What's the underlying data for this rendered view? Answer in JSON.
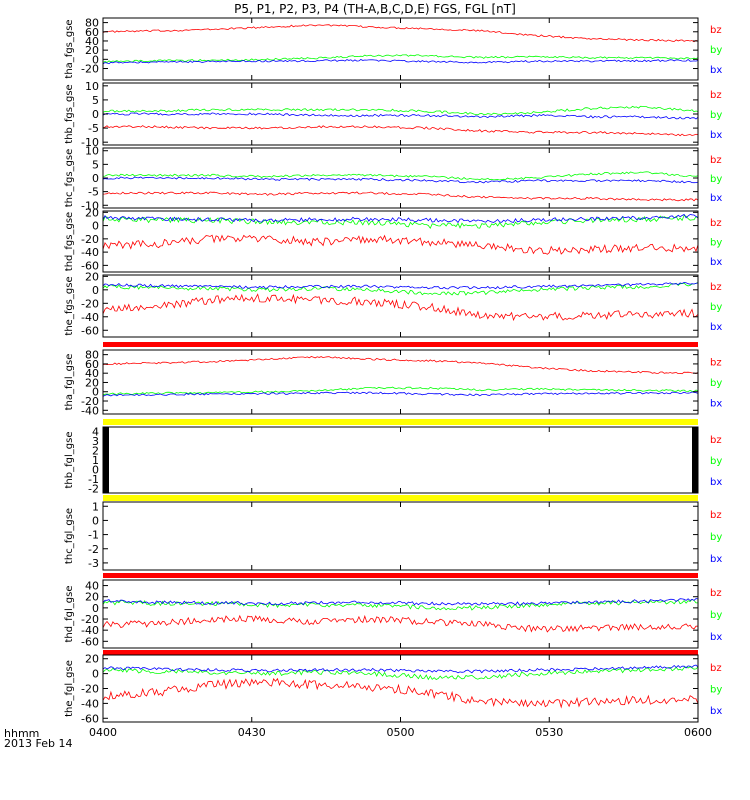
{
  "title": "P5, P1, P2, P3, P4 (TH-A,B,C,D,E) FGS, FGL [nT]",
  "footer": {
    "axis_label": "hhmm",
    "date_label": "2013 Feb 14"
  },
  "x_tick_labels": [
    "0400",
    "0430",
    "0500",
    "0530",
    "0600"
  ],
  "series_colors": {
    "bz": "#ff0000",
    "by": "#00ff00",
    "bx": "#0000ff"
  },
  "bar_colors": {
    "red": "#ff0000",
    "yellow": "#ffff00",
    "black": "#000000"
  },
  "chart_data": {
    "type": "line",
    "x_range_hhmm": [
      "0400",
      "0600"
    ],
    "panels": [
      {
        "ylabel": "tha_fgs_gse",
        "ylim": [
          -45,
          90
        ],
        "yticks": [
          -20,
          0,
          20,
          40,
          60,
          80
        ],
        "ytick_labels": [
          "-20",
          "0",
          "20",
          "40",
          "60",
          "80"
        ],
        "series": [
          {
            "name": "bz",
            "level": [
              60,
              62,
              65,
              70,
              75,
              70,
              67,
              62,
              52,
              45,
              42,
              40
            ],
            "noise": 2
          },
          {
            "name": "by",
            "level": [
              -5,
              -3,
              -2,
              0,
              3,
              8,
              8,
              4,
              6,
              4,
              3,
              2
            ],
            "noise": 2
          },
          {
            "name": "bx",
            "level": [
              -8,
              -6,
              -5,
              -4,
              -3,
              -2,
              -5,
              -7,
              -4,
              -4,
              -3,
              -2
            ],
            "noise": 2
          }
        ]
      },
      {
        "ylabel": "thb_fgs_gse",
        "ylim": [
          -11,
          11
        ],
        "yticks": [
          -10,
          -5,
          0,
          5,
          10
        ],
        "ytick_labels": [
          "-10",
          "-5",
          "0",
          "5",
          "10"
        ],
        "series": [
          {
            "name": "bz",
            "level": [
              -4.5,
              -4.5,
              -5,
              -5,
              -4.5,
              -4.5,
              -5,
              -6,
              -6.5,
              -6.5,
              -7,
              -7.5
            ],
            "noise": 0.4
          },
          {
            "name": "by",
            "level": [
              1,
              1,
              1.5,
              1.5,
              1.5,
              1.5,
              1,
              0,
              0.5,
              2,
              2.5,
              1
            ],
            "noise": 0.4
          },
          {
            "name": "bx",
            "level": [
              0,
              0,
              0,
              0,
              -0.5,
              -0.5,
              -0.5,
              -1,
              -0.5,
              -1,
              -1,
              -1.5
            ],
            "noise": 0.4
          }
        ]
      },
      {
        "ylabel": "thc_fgs_gse",
        "ylim": [
          -11,
          11
        ],
        "yticks": [
          -10,
          -5,
          0,
          5,
          10
        ],
        "ytick_labels": [
          "-10",
          "-5",
          "0",
          "5",
          "10"
        ],
        "series": [
          {
            "name": "bz",
            "level": [
              -5.5,
              -5.5,
              -5.5,
              -6,
              -5.5,
              -5.5,
              -6,
              -7,
              -7.5,
              -7.5,
              -8,
              -8
            ],
            "noise": 0.4
          },
          {
            "name": "by",
            "level": [
              1,
              1,
              1,
              0.5,
              1,
              1,
              0.5,
              -0.5,
              0,
              1.5,
              2,
              0.5
            ],
            "noise": 0.4
          },
          {
            "name": "bx",
            "level": [
              0,
              0,
              0,
              -0.5,
              -0.5,
              -0.5,
              -1,
              -1.5,
              -1,
              -1,
              -1,
              -1.5
            ],
            "noise": 0.4
          }
        ]
      },
      {
        "ylabel": "thd_fgs_gse",
        "ylim": [
          -70,
          22
        ],
        "yticks": [
          -60,
          -40,
          -20,
          0,
          20
        ],
        "ytick_labels": [
          "-60",
          "-40",
          "-20",
          "0",
          "20"
        ],
        "series": [
          {
            "name": "bz",
            "level": [
              -30,
              -28,
              -20,
              -20,
              -25,
              -20,
              -25,
              -30,
              -38,
              -36,
              -34,
              -33
            ],
            "noise": 6
          },
          {
            "name": "by",
            "level": [
              10,
              8,
              8,
              5,
              5,
              5,
              0,
              0,
              5,
              8,
              10,
              12
            ],
            "noise": 4
          },
          {
            "name": "bx",
            "level": [
              12,
              10,
              9,
              8,
              9,
              10,
              8,
              7,
              8,
              10,
              12,
              15
            ],
            "noise": 3
          }
        ]
      },
      {
        "ylabel": "the_fgs_gse",
        "ylim": [
          -70,
          22
        ],
        "yticks": [
          -60,
          -40,
          -20,
          0,
          20
        ],
        "ytick_labels": [
          "-60",
          "-40",
          "-20",
          "0",
          "20"
        ],
        "series": [
          {
            "name": "bz",
            "level": [
              -30,
              -25,
              -15,
              -12,
              -15,
              -18,
              -25,
              -38,
              -40,
              -38,
              -36,
              -35
            ],
            "noise": 6
          },
          {
            "name": "by",
            "level": [
              5,
              3,
              2,
              0,
              2,
              0,
              -5,
              -5,
              0,
              3,
              5,
              8
            ],
            "noise": 3
          },
          {
            "name": "bx",
            "level": [
              8,
              6,
              5,
              4,
              5,
              5,
              3,
              3,
              5,
              6,
              8,
              10
            ],
            "noise": 2
          }
        ]
      },
      {
        "ylabel": "tha_fgl_gse",
        "ylim": [
          -48,
          90
        ],
        "yticks": [
          -40,
          -20,
          0,
          20,
          40,
          60,
          80
        ],
        "ytick_labels": [
          "-40",
          "-20",
          "0",
          "20",
          "40",
          "60",
          "80"
        ],
        "series": [
          {
            "name": "bz",
            "level": [
              60,
              62,
              65,
              70,
              75,
              70,
              67,
              62,
              52,
              45,
              42,
              40
            ],
            "noise": 2
          },
          {
            "name": "by",
            "level": [
              -5,
              -3,
              -2,
              0,
              3,
              8,
              8,
              4,
              6,
              4,
              3,
              2
            ],
            "noise": 2
          },
          {
            "name": "bx",
            "level": [
              -8,
              -6,
              -5,
              -4,
              -3,
              -2,
              -5,
              -7,
              -4,
              -4,
              -3,
              -2
            ],
            "noise": 2
          }
        ]
      },
      {
        "ylabel": "thb_fgl_gse",
        "ylim": [
          -2.5,
          4.5
        ],
        "yticks": [
          -2,
          -1,
          0,
          1,
          2,
          3,
          4
        ],
        "ytick_labels": [
          "-2",
          "-1",
          "0",
          "1",
          "2",
          "3",
          "4"
        ],
        "series": []
      },
      {
        "ylabel": "thc_fgl_gse",
        "ylim": [
          -3.5,
          1.3
        ],
        "yticks": [
          -3,
          -2,
          -1,
          0,
          1
        ],
        "ytick_labels": [
          "-3",
          "-2",
          "-1",
          "0",
          "1"
        ],
        "series": []
      },
      {
        "ylabel": "thd_fgl_gse",
        "ylim": [
          -72,
          50
        ],
        "yticks": [
          -60,
          -40,
          -20,
          0,
          20,
          40
        ],
        "ytick_labels": [
          "-60",
          "-40",
          "-20",
          "0",
          "20",
          "40"
        ],
        "series": [
          {
            "name": "bz",
            "level": [
              -30,
              -28,
              -20,
              -20,
              -25,
              -20,
              -25,
              -30,
              -38,
              -36,
              -34,
              -33
            ],
            "noise": 6
          },
          {
            "name": "by",
            "level": [
              10,
              8,
              8,
              5,
              5,
              5,
              0,
              0,
              5,
              8,
              10,
              12
            ],
            "noise": 4
          },
          {
            "name": "bx",
            "level": [
              12,
              10,
              9,
              8,
              9,
              10,
              8,
              7,
              8,
              10,
              12,
              15
            ],
            "noise": 3
          }
        ]
      },
      {
        "ylabel": "the_fgl_gse",
        "ylim": [
          -65,
          25
        ],
        "yticks": [
          -60,
          -40,
          -20,
          0,
          20
        ],
        "ytick_labels": [
          "-60",
          "-40",
          "-20",
          "0",
          "20"
        ],
        "series": [
          {
            "name": "bz",
            "level": [
              -30,
              -25,
              -15,
              -12,
              -15,
              -18,
              -25,
              -38,
              -40,
              -38,
              -36,
              -35
            ],
            "noise": 6
          },
          {
            "name": "by",
            "level": [
              5,
              3,
              2,
              0,
              2,
              0,
              -5,
              -5,
              0,
              3,
              5,
              8
            ],
            "noise": 3
          },
          {
            "name": "bx",
            "level": [
              8,
              6,
              5,
              4,
              5,
              5,
              3,
              3,
              5,
              6,
              8,
              10
            ],
            "noise": 2
          }
        ]
      }
    ],
    "legend_labels": [
      "bz",
      "by",
      "bx"
    ],
    "status_bars": [
      {
        "after_panel": 4,
        "color": "red"
      },
      {
        "after_panel": 5,
        "color": "yellow"
      },
      {
        "after_panel": 6,
        "color": "yellow"
      },
      {
        "after_panel": 7,
        "color": "red"
      },
      {
        "after_panel": 8,
        "color": "red"
      }
    ]
  }
}
